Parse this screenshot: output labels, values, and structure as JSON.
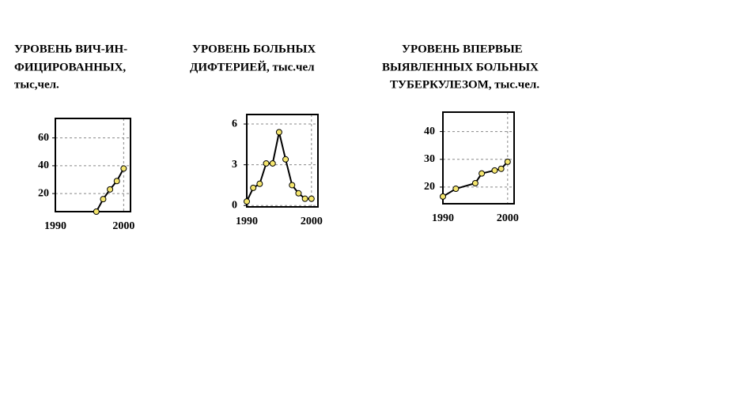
{
  "chart_data": [
    {
      "type": "line",
      "title": [
        "УРОВЕНЬ ВИЧ-ИН-",
        "ФИЦИРОВАННЫХ,",
        "тыс,чел."
      ],
      "x": [
        1996,
        1997,
        1998,
        1999,
        2000
      ],
      "values": [
        7,
        16,
        23,
        29,
        38
      ],
      "color": "#000000",
      "marker_color": "#f5e66e",
      "xlim": [
        1990,
        2001
      ],
      "ylim": [
        7,
        74
      ],
      "xticks": [
        1990,
        2000
      ],
      "yticks": [
        20,
        40,
        60
      ],
      "grid": true
    },
    {
      "type": "line",
      "title": [
        "УРОВЕНЬ БОЛЬНЫХ",
        "ДИФТЕРИЕЙ, тыс.чел"
      ],
      "x": [
        1990,
        1991,
        1992,
        1993,
        1994,
        1995,
        1996,
        1997,
        1998,
        1999,
        2000
      ],
      "values": [
        0.3,
        1.3,
        1.6,
        3.1,
        3.1,
        5.4,
        3.4,
        1.5,
        0.9,
        0.5,
        0.5
      ],
      "color": "#000000",
      "marker_color": "#f5e66e",
      "xlim": [
        1990,
        2001
      ],
      "ylim": [
        -0.1,
        6.7
      ],
      "xticks": [
        1990,
        2000
      ],
      "yticks": [
        0,
        3,
        6
      ],
      "grid": true
    },
    {
      "type": "line",
      "title": [
        "УРОВЕНЬ ВПЕРВЫЕ",
        "ВЫЯВЛЕННЫХ БОЛЬНЫХ",
        "ТУБЕРКУЛЕЗОМ, тыс.чел."
      ],
      "x": [
        1990,
        1992,
        1995,
        1996,
        1998,
        1999,
        2000
      ],
      "values": [
        16.6,
        19.4,
        21.4,
        24.9,
        26,
        26.6,
        29.1
      ],
      "color": "#000000",
      "marker_color": "#f5e66e",
      "xlim": [
        1990,
        2001
      ],
      "ylim": [
        14,
        47
      ],
      "xticks": [
        1990,
        2000
      ],
      "yticks": [
        20,
        30,
        40
      ],
      "grid": true
    }
  ]
}
